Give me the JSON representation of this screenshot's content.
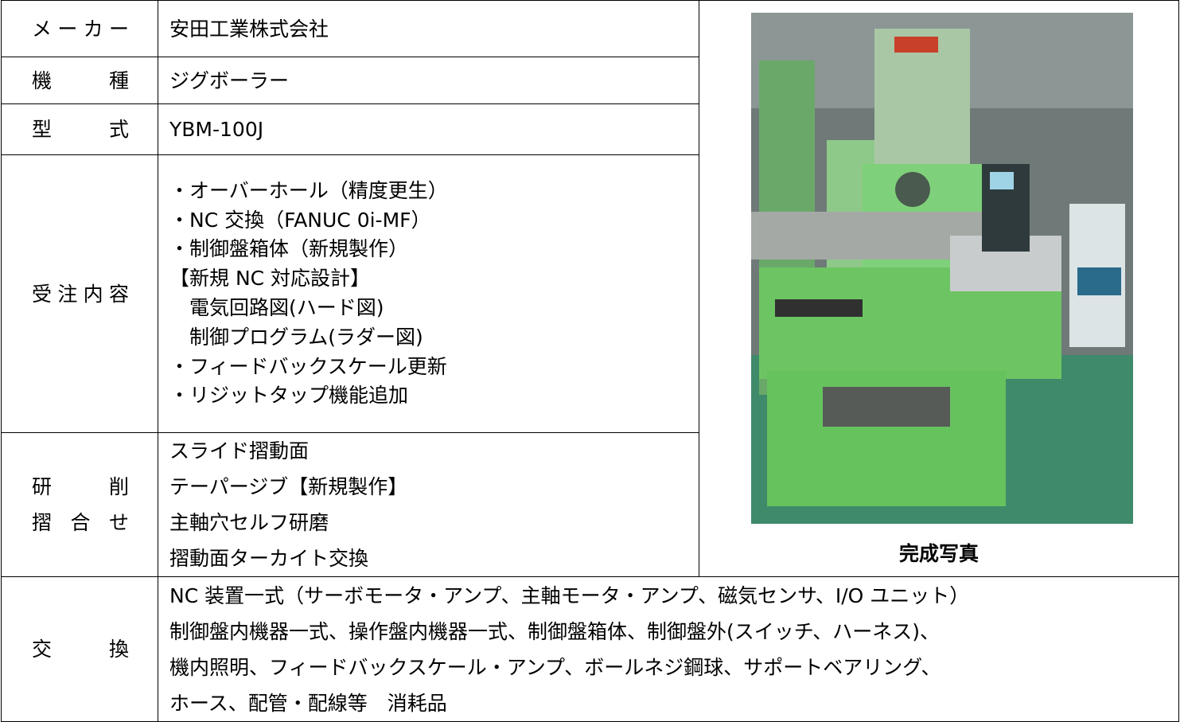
{
  "table": {
    "rows": [
      {
        "label": [
          "メーカー"
        ],
        "content": [
          "安田工業株式会社"
        ]
      },
      {
        "label": [
          "機種"
        ],
        "content": [
          "ジグボーラー"
        ]
      },
      {
        "label": [
          "型式"
        ],
        "content": [
          "YBM-100J"
        ]
      },
      {
        "label": [
          "受注内容"
        ],
        "content": [
          "・オーバーホール（精度更生）",
          "・NC 交換（FANUC 0i-MF）",
          "・制御盤箱体（新規製作）",
          "【新規 NC 対応設計】",
          "　電気回路図(ハード図)",
          "　制御プログラム(ラダー図)",
          "・フィードバックスケール更新",
          "・リジットタップ機能追加"
        ]
      },
      {
        "label": [
          "研削",
          "摺合せ"
        ],
        "content": [
          "スライド摺動面",
          "テーパージブ【新規製作】",
          "主軸穴セルフ研磨",
          "摺動面ターカイト交換"
        ]
      },
      {
        "label": [
          "交換"
        ],
        "content": [
          "NC 装置一式（サーボモータ・アンプ、主軸モータ・アンプ、磁気センサ、I/O ユニット）",
          "制御盤内機器一式、操作盤内機器一式、制御盤箱体、制御盤外(スイッチ、ハーネス)、",
          "機内照明、フィードバックスケール・アンプ、ボールネジ鋼球、サポートベアリング、",
          "ホース、配管・配線等　消耗品"
        ]
      }
    ],
    "photo_caption": "完成写真"
  }
}
